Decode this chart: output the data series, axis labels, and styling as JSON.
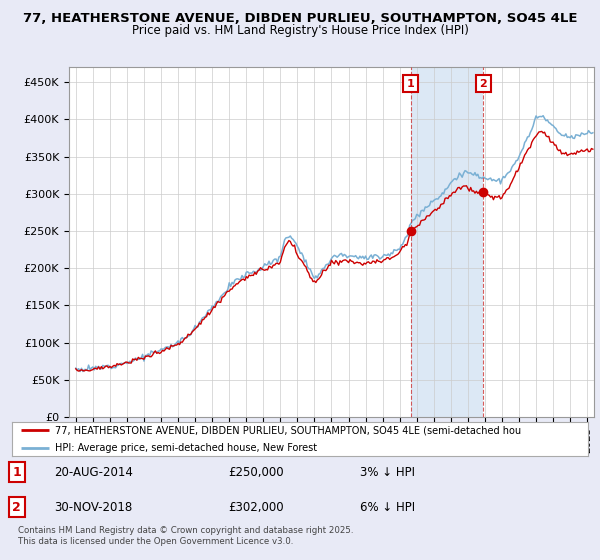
{
  "title_line1": "77, HEATHERSTONE AVENUE, DIBDEN PURLIEU, SOUTHAMPTON, SO45 4LE",
  "title_line2": "Price paid vs. HM Land Registry's House Price Index (HPI)",
  "legend_label_red": "77, HEATHERSTONE AVENUE, DIBDEN PURLIEU, SOUTHAMPTON, SO45 4LE (semi-detached hou",
  "legend_label_blue": "HPI: Average price, semi-detached house, New Forest",
  "footnote": "Contains HM Land Registry data © Crown copyright and database right 2025.\nThis data is licensed under the Open Government Licence v3.0.",
  "annotation1": {
    "num": "1",
    "date": "20-AUG-2014",
    "price": "£250,000",
    "note": "3% ↓ HPI"
  },
  "annotation2": {
    "num": "2",
    "date": "30-NOV-2018",
    "price": "£302,000",
    "note": "6% ↓ HPI"
  },
  "ylabel_ticks": [
    "£0",
    "£50K",
    "£100K",
    "£150K",
    "£200K",
    "£250K",
    "£300K",
    "£350K",
    "£400K",
    "£450K"
  ],
  "ytick_values": [
    0,
    50000,
    100000,
    150000,
    200000,
    250000,
    300000,
    350000,
    400000,
    450000
  ],
  "ylim": [
    0,
    470000
  ],
  "bg_color": "#e8eaf6",
  "plot_bg": "#ffffff",
  "highlight_bg": "#dce8f5",
  "red_color": "#cc0000",
  "blue_color": "#7ab0d4",
  "marker1_x": 2014.638,
  "marker1_y": 250000,
  "marker2_x": 2018.917,
  "marker2_y": 302000,
  "vline1_x": 2014.638,
  "vline2_x": 2018.917,
  "xmin": 1994.6,
  "xmax": 2025.4,
  "xtick_start": 1995,
  "xtick_end": 2025
}
